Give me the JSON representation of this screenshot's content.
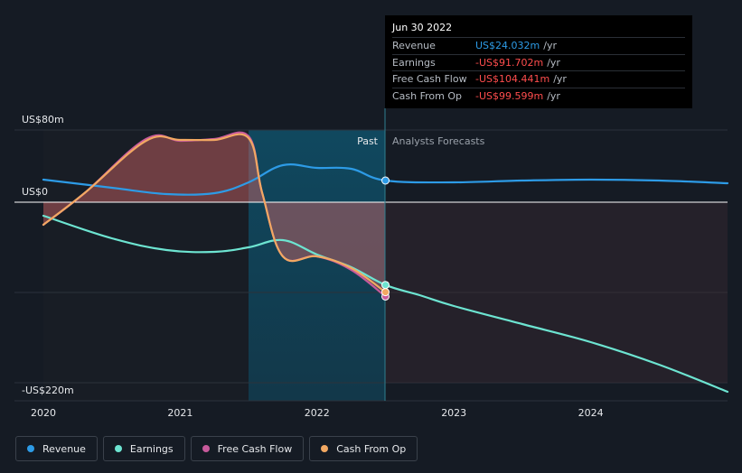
{
  "chart_data": {
    "type": "line",
    "y_tick_labels": {
      "top": "US$80m",
      "zero": "US$0",
      "bottom": "-US$220m"
    },
    "ylim": [
      -220,
      80
    ],
    "xlim": [
      2020,
      2025
    ],
    "x_tick_labels": [
      "2020",
      "2021",
      "2022",
      "2023",
      "2024"
    ],
    "x_tick_values": [
      2020,
      2021,
      2022,
      2023,
      2024
    ],
    "past_label": "Past",
    "forecast_label": "Analysts Forecasts",
    "divider_x": 2022.5,
    "past_band_start": 2021.5,
    "series": [
      {
        "name": "Revenue",
        "color": "#2d9be6",
        "points": [
          [
            2020,
            25
          ],
          [
            2020.5,
            16
          ],
          [
            2020.9,
            9
          ],
          [
            2021.25,
            10
          ],
          [
            2021.5,
            22
          ],
          [
            2021.75,
            41
          ],
          [
            2022,
            38
          ],
          [
            2022.25,
            37
          ],
          [
            2022.5,
            24
          ],
          [
            2023,
            22
          ],
          [
            2023.5,
            24
          ],
          [
            2024,
            25
          ],
          [
            2024.5,
            24
          ],
          [
            2025,
            21
          ]
        ]
      },
      {
        "name": "Earnings",
        "color": "#6de4d1",
        "points": [
          [
            2020,
            -15
          ],
          [
            2020.5,
            -40
          ],
          [
            2020.9,
            -53
          ],
          [
            2021.25,
            -55
          ],
          [
            2021.5,
            -50
          ],
          [
            2021.75,
            -42
          ],
          [
            2022,
            -58
          ],
          [
            2022.25,
            -72
          ],
          [
            2022.5,
            -91.702
          ],
          [
            2022.75,
            -103
          ],
          [
            2023,
            -115
          ],
          [
            2023.5,
            -135
          ],
          [
            2024,
            -155
          ],
          [
            2024.5,
            -180
          ],
          [
            2025,
            -210
          ]
        ]
      },
      {
        "name": "Free Cash Flow",
        "color": "#c75a9b",
        "points": [
          [
            2020,
            -25
          ],
          [
            2020.3,
            10
          ],
          [
            2020.75,
            70
          ],
          [
            2021,
            68
          ],
          [
            2021.25,
            70
          ],
          [
            2021.5,
            73
          ],
          [
            2021.6,
            10
          ],
          [
            2021.75,
            -60
          ],
          [
            2022,
            -60
          ],
          [
            2022.25,
            -75
          ],
          [
            2022.5,
            -104.441
          ]
        ]
      },
      {
        "name": "Cash From Op",
        "color": "#f2a862",
        "points": [
          [
            2020,
            -25
          ],
          [
            2020.3,
            10
          ],
          [
            2020.75,
            68
          ],
          [
            2021,
            69
          ],
          [
            2021.25,
            69
          ],
          [
            2021.5,
            71
          ],
          [
            2021.6,
            10
          ],
          [
            2021.75,
            -60
          ],
          [
            2022,
            -60
          ],
          [
            2022.25,
            -73
          ],
          [
            2022.5,
            -99.599
          ]
        ]
      }
    ]
  },
  "tooltip": {
    "date": "Jun 30 2022",
    "rows": [
      {
        "name": "Revenue",
        "value": "US$24.032m",
        "unit": "/yr",
        "color": "#2d9be6"
      },
      {
        "name": "Earnings",
        "value": "-US$91.702m",
        "unit": "/yr",
        "color": "#ff4d4d"
      },
      {
        "name": "Free Cash Flow",
        "value": "-US$104.441m",
        "unit": "/yr",
        "color": "#ff4d4d"
      },
      {
        "name": "Cash From Op",
        "value": "-US$99.599m",
        "unit": "/yr",
        "color": "#ff4d4d"
      }
    ]
  },
  "legend": [
    {
      "label": "Revenue",
      "color": "#2d9be6"
    },
    {
      "label": "Earnings",
      "color": "#6de4d1"
    },
    {
      "label": "Free Cash Flow",
      "color": "#c75a9b"
    },
    {
      "label": "Cash From Op",
      "color": "#f2a862"
    }
  ]
}
